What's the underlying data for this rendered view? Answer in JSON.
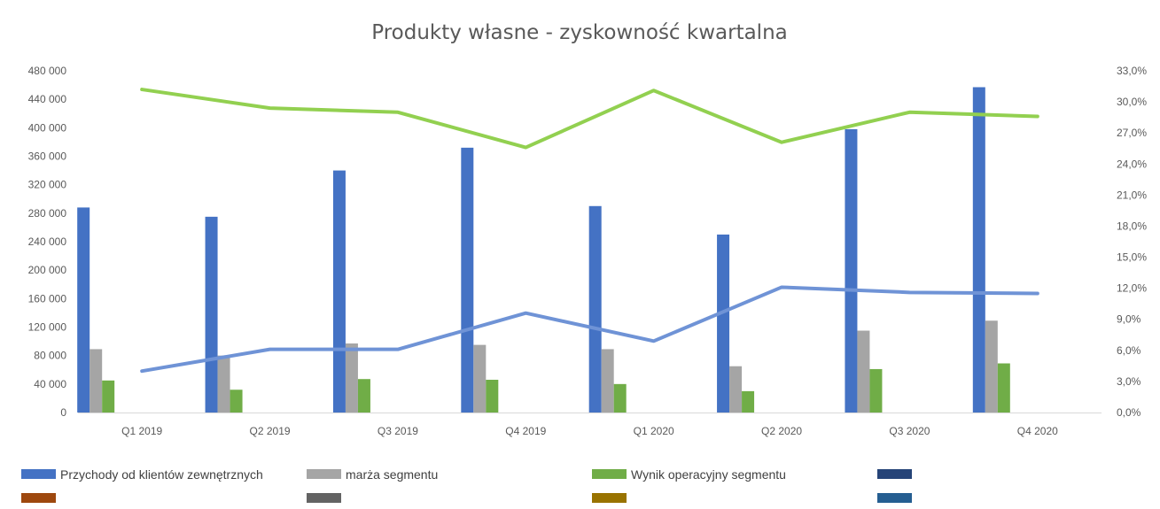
{
  "chart_data": {
    "type": "bar",
    "title": "Produkty własne - zyskowność kwartalna",
    "categories": [
      "Q1 2019",
      "Q2 2019",
      "Q3 2019",
      "Q4 2019",
      "Q1 2020",
      "Q2 2020",
      "Q3 2020",
      "Q4 2020"
    ],
    "y_left": {
      "range": [
        0,
        480000
      ],
      "ticks": [
        0,
        40000,
        80000,
        120000,
        160000,
        200000,
        240000,
        280000,
        320000,
        360000,
        400000,
        440000,
        480000
      ],
      "tick_labels": [
        "0",
        "40 000",
        "80 000",
        "120 000",
        "160 000",
        "200 000",
        "240 000",
        "280 000",
        "320 000",
        "360 000",
        "400 000",
        "440 000",
        "480 000"
      ]
    },
    "y_right": {
      "range": [
        0,
        0.33
      ],
      "ticks": [
        0,
        0.03,
        0.06,
        0.09,
        0.12,
        0.15,
        0.18,
        0.21,
        0.24,
        0.27,
        0.3,
        0.33
      ],
      "tick_labels": [
        "0,0%",
        "3,0%",
        "6,0%",
        "9,0%",
        "12,0%",
        "15,0%",
        "18,0%",
        "21,0%",
        "24,0%",
        "27,0%",
        "30,0%",
        "33,0%"
      ]
    },
    "bar_series": [
      {
        "name": "Przychody od klientów zewnętrznych",
        "color": "#4472c4",
        "values": [
          288000,
          275000,
          340000,
          372000,
          290000,
          250000,
          398000,
          457000
        ]
      },
      {
        "name": "marża segmentu",
        "color": "#a5a5a5",
        "values": [
          89000,
          80000,
          97000,
          95000,
          89000,
          65000,
          115000,
          129000
        ]
      },
      {
        "name": "Wynik operacyjny segmentu",
        "color": "#70ad47",
        "values": [
          45000,
          32000,
          47000,
          46000,
          40000,
          30000,
          61000,
          69000
        ]
      }
    ],
    "line_series": [
      {
        "color": "#92d050",
        "axis": "right",
        "values": [
          0.312,
          0.294,
          0.29,
          0.256,
          0.311,
          0.261,
          0.29,
          0.286
        ]
      },
      {
        "color": "#6f93d6",
        "axis": "right",
        "values": [
          0.04,
          0.061,
          0.061,
          0.096,
          0.069,
          0.121,
          0.116,
          0.115
        ]
      }
    ],
    "grid": false,
    "legend": {
      "position": "bottom",
      "entries": [
        {
          "label": "Przychody od klientów zewnętrznych",
          "color": "#4472c4"
        },
        {
          "label": "marża segmentu",
          "color": "#a5a5a5"
        },
        {
          "label": "Wynik operacyjny segmentu",
          "color": "#70ad47"
        },
        {
          "label": "",
          "color": "#264478"
        },
        {
          "label": "",
          "color": "#9e480e"
        },
        {
          "label": "",
          "color": "#636363"
        },
        {
          "label": "",
          "color": "#997300"
        },
        {
          "label": "",
          "color": "#255e91"
        }
      ]
    }
  }
}
